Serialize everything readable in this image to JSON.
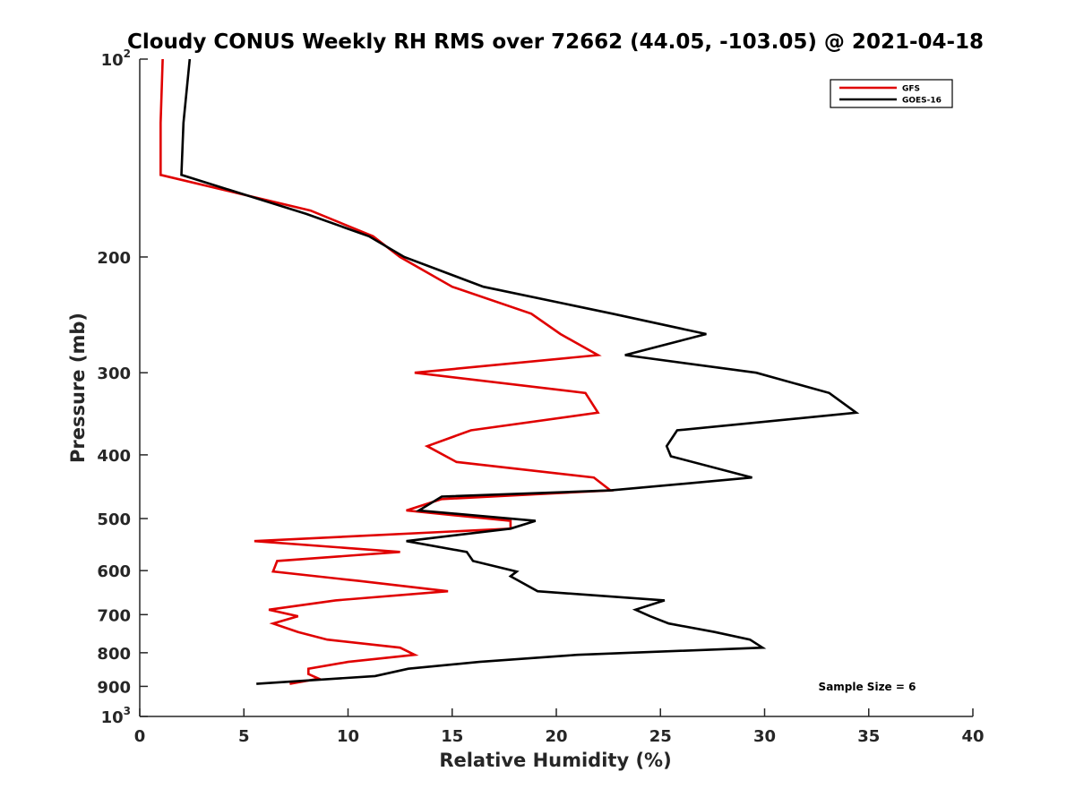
{
  "chart_data": {
    "type": "line",
    "title": "Cloudy CONUS Weekly RH RMS over 72662 (44.05, -103.05) @ 2021-04-18",
    "xlabel": "Relative Humidity (%)",
    "ylabel": "Pressure (mb)",
    "xlim": [
      0,
      40
    ],
    "ylim": [
      100,
      1000
    ],
    "y_scale": "log",
    "y_reversed": true,
    "grid": false,
    "legend_position": "top-right",
    "x_ticks": [
      0,
      5,
      10,
      15,
      20,
      25,
      30,
      35,
      40
    ],
    "x_tick_labels": [
      "0",
      "5",
      "10",
      "15",
      "20",
      "25",
      "30",
      "35",
      "40"
    ],
    "y_ticks": [
      100,
      200,
      300,
      400,
      500,
      600,
      700,
      800,
      900,
      1000
    ],
    "y_tick_labels": [
      {
        "base": "10",
        "sup": "2"
      },
      {
        "base": "200"
      },
      {
        "base": "300"
      },
      {
        "base": "400"
      },
      {
        "base": "500"
      },
      {
        "base": "600"
      },
      {
        "base": "700"
      },
      {
        "base": "800"
      },
      {
        "base": "900"
      },
      {
        "base": "10",
        "sup": "3"
      }
    ],
    "annotation": "Sample Size = 6",
    "series": [
      {
        "name": "GFS",
        "color": "#e00000",
        "points": [
          [
            1.1,
            100
          ],
          [
            1.0,
            125
          ],
          [
            1.0,
            150
          ],
          [
            8.2,
            170
          ],
          [
            11.2,
            186
          ],
          [
            12.5,
            200
          ],
          [
            15.0,
            222
          ],
          [
            18.8,
            244
          ],
          [
            20.2,
            262
          ],
          [
            22.0,
            282
          ],
          [
            13.2,
            300
          ],
          [
            21.4,
            322
          ],
          [
            22.0,
            345
          ],
          [
            15.9,
            367
          ],
          [
            13.8,
            388
          ],
          [
            15.2,
            410
          ],
          [
            21.8,
            433
          ],
          [
            22.6,
            453
          ],
          [
            14.5,
            467
          ],
          [
            12.8,
            486
          ],
          [
            17.8,
            504
          ],
          [
            17.8,
            518
          ],
          [
            5.5,
            541
          ],
          [
            12.5,
            562
          ],
          [
            6.6,
            580
          ],
          [
            6.4,
            602
          ],
          [
            10.5,
            622
          ],
          [
            14.8,
            645
          ],
          [
            9.4,
            666
          ],
          [
            6.2,
            688
          ],
          [
            7.6,
            704
          ],
          [
            6.4,
            722
          ],
          [
            7.6,
            744
          ],
          [
            9.0,
            764
          ],
          [
            12.5,
            786
          ],
          [
            13.2,
            806
          ],
          [
            10.0,
            826
          ],
          [
            8.1,
            846
          ],
          [
            8.1,
            862
          ],
          [
            8.6,
            876
          ],
          [
            7.2,
            892
          ]
        ]
      },
      {
        "name": "GOES-16",
        "color": "#000000",
        "points": [
          [
            2.4,
            100
          ],
          [
            2.1,
            125
          ],
          [
            2.0,
            150
          ],
          [
            8.0,
            172
          ],
          [
            11.0,
            186
          ],
          [
            12.7,
            200
          ],
          [
            16.5,
            222
          ],
          [
            22.7,
            244
          ],
          [
            27.2,
            262
          ],
          [
            23.3,
            282
          ],
          [
            29.6,
            300
          ],
          [
            33.1,
            322
          ],
          [
            34.4,
            345
          ],
          [
            25.8,
            367
          ],
          [
            25.3,
            388
          ],
          [
            25.5,
            402
          ],
          [
            29.4,
            433
          ],
          [
            22.6,
            453
          ],
          [
            14.5,
            463
          ],
          [
            13.4,
            486
          ],
          [
            19.0,
            504
          ],
          [
            17.8,
            518
          ],
          [
            12.8,
            541
          ],
          [
            15.7,
            562
          ],
          [
            16.0,
            580
          ],
          [
            18.1,
            602
          ],
          [
            17.8,
            612
          ],
          [
            19.1,
            645
          ],
          [
            25.2,
            666
          ],
          [
            23.8,
            688
          ],
          [
            24.5,
            704
          ],
          [
            25.4,
            722
          ],
          [
            27.6,
            744
          ],
          [
            29.3,
            764
          ],
          [
            29.9,
            786
          ],
          [
            21.0,
            806
          ],
          [
            16.3,
            826
          ],
          [
            12.9,
            846
          ],
          [
            11.3,
            868
          ],
          [
            5.6,
            892
          ]
        ]
      }
    ]
  }
}
